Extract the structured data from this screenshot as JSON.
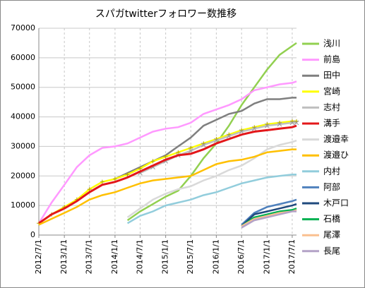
{
  "chart_data": {
    "type": "line",
    "title": "スパガtwitterフォロワー数推移",
    "x": [
      "2012/7/1",
      "2012/10/1",
      "2013/1/1",
      "2013/4/1",
      "2013/7/1",
      "2013/10/1",
      "2014/1/1",
      "2014/4/1",
      "2014/7/1",
      "2014/10/1",
      "2015/1/1",
      "2015/4/1",
      "2015/7/1",
      "2015/10/1",
      "2016/1/1",
      "2016/4/1",
      "2016/7/1",
      "2016/10/1",
      "2017/1/1",
      "2017/4/1",
      "2017/7/1",
      "2017/8/1"
    ],
    "xlim": [
      "2012/7/1",
      "2017/8/1"
    ],
    "xticks": [
      "2012/7/1",
      "2013/1/1",
      "2013/7/1",
      "2014/1/1",
      "2014/7/1",
      "2015/1/1",
      "2015/7/1",
      "2016/1/1",
      "2016/7/1",
      "2017/1/1",
      "2017/7/1"
    ],
    "ylim": [
      0,
      70000
    ],
    "yticks": [
      0,
      10000,
      20000,
      30000,
      40000,
      50000,
      60000,
      70000
    ],
    "grid": true,
    "legend": "right",
    "series": [
      {
        "name": "浅川",
        "color": "#92d050",
        "values": [
          null,
          null,
          null,
          null,
          null,
          null,
          null,
          5000,
          8000,
          10500,
          13000,
          15000,
          20000,
          26000,
          31000,
          37000,
          44000,
          50000,
          56000,
          61000,
          64000,
          65000
        ]
      },
      {
        "name": "前島",
        "color": "#ff99ff",
        "values": [
          4000,
          11000,
          17000,
          23000,
          27000,
          29500,
          30000,
          31000,
          33000,
          35000,
          36000,
          36500,
          38000,
          41000,
          42500,
          44000,
          46000,
          49000,
          50000,
          51000,
          51500,
          52000
        ]
      },
      {
        "name": "田中",
        "color": "#7f7f7f",
        "values": [
          null,
          null,
          null,
          null,
          null,
          null,
          19000,
          21000,
          23000,
          25000,
          27000,
          30000,
          33000,
          37000,
          39000,
          41000,
          42000,
          44500,
          46000,
          46000,
          46500,
          46500
        ]
      },
      {
        "name": "宮崎",
        "color": "#ffff00",
        "marker": "plus",
        "values": [
          4000,
          7000,
          9500,
          12000,
          15500,
          18000,
          19000,
          20500,
          22500,
          25000,
          26500,
          28000,
          29500,
          31000,
          32500,
          34000,
          35500,
          36500,
          37500,
          38000,
          38500,
          38500
        ]
      },
      {
        "name": "志村",
        "color": "#bfbfbf",
        "marker": "x",
        "values": [
          null,
          null,
          null,
          null,
          null,
          null,
          null,
          null,
          21000,
          23000,
          25000,
          27000,
          28500,
          30500,
          32000,
          33500,
          35000,
          36000,
          37000,
          37500,
          38000,
          38000
        ]
      },
      {
        "name": "溝手",
        "color": "#e3171a",
        "values": [
          4000,
          7000,
          9000,
          11500,
          14500,
          17000,
          18000,
          19500,
          21500,
          23500,
          25500,
          27000,
          27500,
          29000,
          31000,
          32500,
          34000,
          35000,
          35500,
          36000,
          36500,
          37000
        ]
      },
      {
        "name": "渡邉幸",
        "color": "#d9d9d9",
        "values": [
          null,
          null,
          null,
          null,
          null,
          null,
          null,
          6000,
          9000,
          12000,
          14000,
          15500,
          16500,
          18500,
          20000,
          22000,
          23500,
          26000,
          29000,
          30500,
          31500,
          32000
        ]
      },
      {
        "name": "渡邉ひ",
        "color": "#ffc000",
        "values": [
          3500,
          5500,
          7500,
          9500,
          12000,
          13500,
          14500,
          16000,
          17500,
          18500,
          19000,
          19500,
          20000,
          22000,
          24000,
          25000,
          25500,
          26500,
          28000,
          28500,
          29000,
          29000
        ]
      },
      {
        "name": "内村",
        "color": "#92cddc",
        "values": [
          null,
          null,
          null,
          null,
          null,
          null,
          null,
          4000,
          6500,
          8000,
          10000,
          11000,
          12000,
          13500,
          14500,
          16000,
          17500,
          18500,
          19500,
          20000,
          20500,
          20500
        ]
      },
      {
        "name": "阿部",
        "color": "#4f81bd",
        "values": [
          null,
          null,
          null,
          null,
          null,
          null,
          null,
          null,
          null,
          null,
          null,
          null,
          null,
          null,
          null,
          null,
          3500,
          7500,
          9500,
          10500,
          11500,
          12000
        ]
      },
      {
        "name": "木戸口",
        "color": "#1f497d",
        "values": [
          null,
          null,
          null,
          null,
          null,
          null,
          null,
          null,
          null,
          null,
          null,
          null,
          null,
          null,
          null,
          null,
          3000,
          7000,
          8000,
          9000,
          10000,
          10500
        ]
      },
      {
        "name": "石橋",
        "color": "#00b050",
        "values": [
          null,
          null,
          null,
          null,
          null,
          null,
          null,
          null,
          null,
          null,
          null,
          null,
          null,
          null,
          null,
          null,
          3000,
          6000,
          7000,
          8000,
          8500,
          9000
        ]
      },
      {
        "name": "尾澤",
        "color": "#fac090",
        "values": [
          null,
          null,
          null,
          null,
          null,
          null,
          null,
          null,
          null,
          null,
          null,
          null,
          null,
          null,
          null,
          null,
          3000,
          5500,
          6500,
          7500,
          8000,
          8500
        ]
      },
      {
        "name": "長尾",
        "color": "#b3a2c7",
        "values": [
          null,
          null,
          null,
          null,
          null,
          null,
          null,
          null,
          null,
          null,
          null,
          null,
          null,
          null,
          null,
          null,
          2500,
          5000,
          6000,
          7000,
          8000,
          8000
        ]
      }
    ]
  }
}
